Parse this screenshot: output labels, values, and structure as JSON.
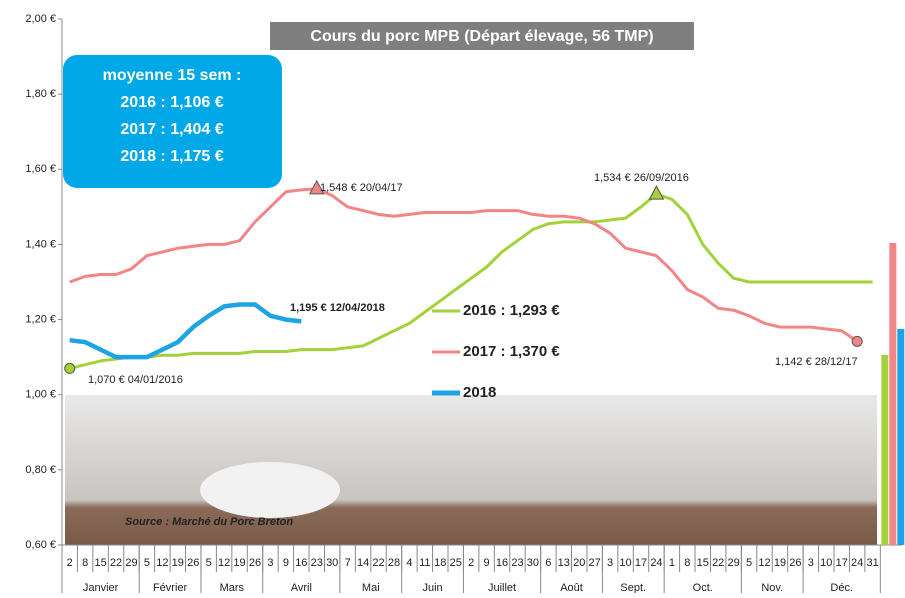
{
  "chart_data": {
    "type": "line",
    "title": "Cours du porc MPB (Départ élevage, 56 TMP)",
    "categories": [
      "2",
      "8",
      "15",
      "22",
      "29",
      "5",
      "12",
      "19",
      "26",
      "5",
      "12",
      "19",
      "26",
      "3",
      "9",
      "16",
      "23",
      "30",
      "7",
      "14",
      "22",
      "28",
      "4",
      "11",
      "18",
      "25",
      "2",
      "9",
      "16",
      "23",
      "30",
      "6",
      "13",
      "20",
      "27",
      "3",
      "10",
      "17",
      "24",
      "1",
      "8",
      "15",
      "22",
      "29",
      "5",
      "12",
      "19",
      "26",
      "3",
      "10",
      "17",
      "24",
      "31"
    ],
    "month_groups": [
      {
        "name": "Janvier",
        "weeks": 5
      },
      {
        "name": "Février",
        "weeks": 4
      },
      {
        "name": "Mars",
        "weeks": 4
      },
      {
        "name": "Avril",
        "weeks": 5
      },
      {
        "name": "Mai",
        "weeks": 4
      },
      {
        "name": "Juin",
        "weeks": 4
      },
      {
        "name": "Juillet",
        "weeks": 5
      },
      {
        "name": "Août",
        "weeks": 4
      },
      {
        "name": "Sept.",
        "weeks": 4
      },
      {
        "name": "Oct.",
        "weeks": 5
      },
      {
        "name": "Nov.",
        "weeks": 4
      },
      {
        "name": "Déc.",
        "weeks": 5
      }
    ],
    "series": [
      {
        "name": "2016 : 1,293 €",
        "color": "#a3d13a",
        "values": [
          1.07,
          1.08,
          1.09,
          1.095,
          1.1,
          1.1,
          1.105,
          1.105,
          1.11,
          1.11,
          1.11,
          1.11,
          1.115,
          1.115,
          1.115,
          1.12,
          1.12,
          1.12,
          1.125,
          1.13,
          1.15,
          1.17,
          1.19,
          1.22,
          1.25,
          1.28,
          1.31,
          1.34,
          1.38,
          1.41,
          1.44,
          1.455,
          1.46,
          1.46,
          1.46,
          1.465,
          1.47,
          1.5,
          1.534,
          1.52,
          1.48,
          1.4,
          1.35,
          1.31,
          1.3,
          1.3,
          1.3,
          1.3,
          1.3,
          1.3,
          1.3,
          1.3,
          1.3
        ]
      },
      {
        "name": "2017 : 1,370 €",
        "color": "#f28585",
        "values": [
          1.3,
          1.315,
          1.32,
          1.32,
          1.335,
          1.37,
          1.38,
          1.39,
          1.395,
          1.4,
          1.4,
          1.41,
          1.46,
          1.5,
          1.54,
          1.545,
          1.548,
          1.53,
          1.5,
          1.49,
          1.48,
          1.475,
          1.48,
          1.485,
          1.485,
          1.485,
          1.485,
          1.49,
          1.49,
          1.49,
          1.48,
          1.475,
          1.475,
          1.47,
          1.455,
          1.43,
          1.39,
          1.38,
          1.37,
          1.33,
          1.28,
          1.26,
          1.23,
          1.225,
          1.21,
          1.19,
          1.18,
          1.18,
          1.18,
          1.175,
          1.17,
          1.142,
          null
        ]
      },
      {
        "name": "2018",
        "color": "#1ea3e6",
        "values": [
          1.145,
          1.14,
          1.12,
          1.1,
          1.1,
          1.1,
          1.12,
          1.14,
          1.18,
          1.21,
          1.235,
          1.24,
          1.24,
          1.21,
          1.2,
          1.195,
          null,
          null,
          null,
          null,
          null,
          null,
          null,
          null,
          null,
          null,
          null,
          null,
          null,
          null,
          null,
          null,
          null,
          null,
          null,
          null,
          null,
          null,
          null,
          null,
          null,
          null,
          null,
          null,
          null,
          null,
          null,
          null,
          null,
          null,
          null,
          null,
          null
        ]
      }
    ],
    "annotations": [
      "1,070 € 04/01/2016",
      "1,195 € 12/04/2018",
      "1,548 € 20/04/17",
      "1,534 € 26/09/2016",
      "1,142 € 28/12/17"
    ],
    "average_box": {
      "title": "moyenne 15 sem :",
      "lines": [
        "2016 : 1,106 €",
        "2017 :  1,404 €",
        "2018 :  1,175 €"
      ]
    },
    "average_values": [
      1.106,
      1.404,
      1.175
    ],
    "source": "Source : Marché du Porc Breton",
    "ylim": [
      0.6,
      2.0
    ],
    "yticks": [
      {
        "value": 0.6,
        "label": "0,60 €"
      },
      {
        "value": 0.8,
        "label": "0,80 €"
      },
      {
        "value": 1.0,
        "label": "1,00 €"
      },
      {
        "value": 1.2,
        "label": "1,20 €"
      },
      {
        "value": 1.4,
        "label": "1,40 €"
      },
      {
        "value": 1.6,
        "label": "1,60 €"
      },
      {
        "value": 1.8,
        "label": "1,80 €"
      },
      {
        "value": 2.0,
        "label": "2,00 €"
      }
    ]
  }
}
